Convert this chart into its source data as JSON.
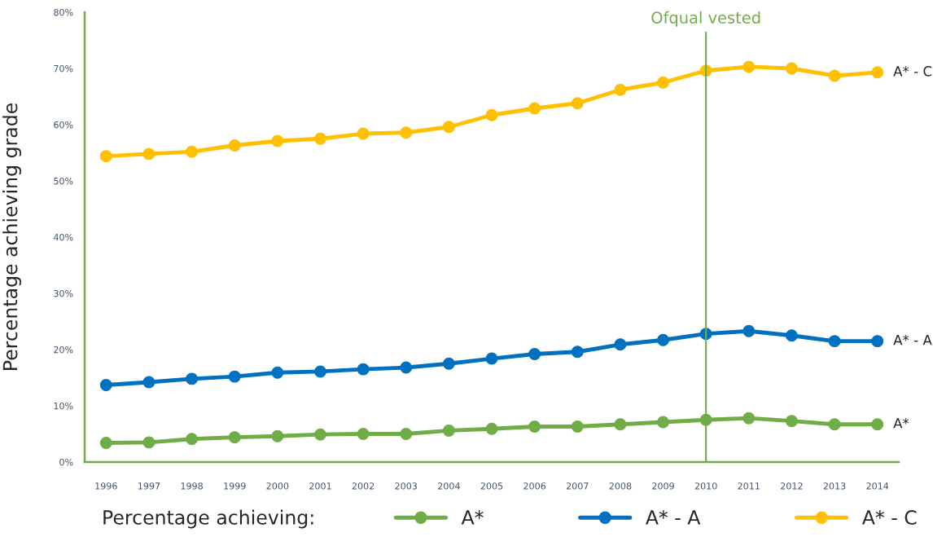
{
  "chart_data": {
    "type": "line",
    "ylabel": "Percentage achieving grade",
    "legend_title": "Percentage achieving:",
    "categories": [
      "1996",
      "1997",
      "1998",
      "1999",
      "2000",
      "2001",
      "2002",
      "2003",
      "2004",
      "2005",
      "2006",
      "2007",
      "2008",
      "2009",
      "2010",
      "2011",
      "2012",
      "2013",
      "2014"
    ],
    "series": [
      {
        "name": "A*",
        "color": "#70ad47",
        "values": [
          3.4,
          3.5,
          4.1,
          4.4,
          4.6,
          4.9,
          5.0,
          5.0,
          5.6,
          5.9,
          6.3,
          6.3,
          6.7,
          7.1,
          7.5,
          7.8,
          7.3,
          6.7,
          6.7
        ]
      },
      {
        "name": "A* - A",
        "color": "#0070c0",
        "values": [
          13.7,
          14.2,
          14.8,
          15.2,
          15.9,
          16.1,
          16.5,
          16.8,
          17.5,
          18.4,
          19.2,
          19.6,
          20.9,
          21.7,
          22.8,
          23.3,
          22.5,
          21.5,
          21.5
        ]
      },
      {
        "name": "A* - C",
        "color": "#ffc000",
        "values": [
          54.4,
          54.8,
          55.2,
          56.3,
          57.1,
          57.5,
          58.4,
          58.6,
          59.6,
          61.7,
          62.9,
          63.8,
          66.2,
          67.5,
          69.6,
          70.3,
          70.0,
          68.7,
          69.3
        ]
      }
    ],
    "ylim": [
      0,
      80
    ],
    "yticks": [
      {
        "value": 0,
        "label": "0%"
      },
      {
        "value": 10,
        "label": "10%"
      },
      {
        "value": 20,
        "label": "20%"
      },
      {
        "value": 30,
        "label": "30%"
      },
      {
        "value": 40,
        "label": "40%"
      },
      {
        "value": 50,
        "label": "50%"
      },
      {
        "value": 60,
        "label": "60%"
      },
      {
        "value": 70,
        "label": "70%"
      },
      {
        "value": 80,
        "label": "80%"
      }
    ],
    "ref_lines": [
      {
        "axis": "x",
        "value": "2010",
        "label": "Ofqual vested",
        "color": "#70ad47"
      }
    ],
    "grid": false,
    "legend": "bottom",
    "marker": "circle",
    "line_style": "solid"
  }
}
